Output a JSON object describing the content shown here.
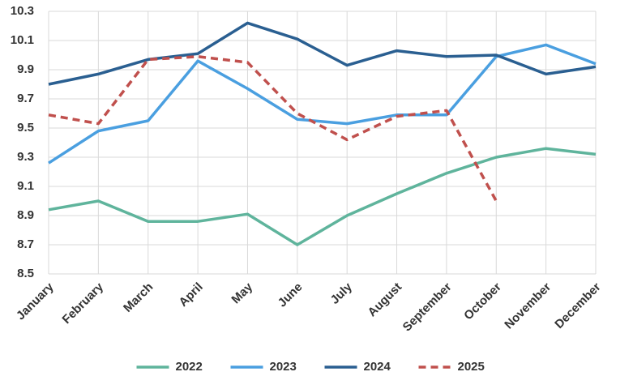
{
  "chart_data": {
    "type": "line",
    "categories": [
      "January",
      "February",
      "March",
      "April",
      "May",
      "June",
      "July",
      "August",
      "September",
      "October",
      "November",
      "December"
    ],
    "series": [
      {
        "name": "2022",
        "color": "#5fb49c",
        "dash": false,
        "values": [
          8.94,
          9.0,
          8.86,
          8.86,
          8.91,
          8.7,
          8.9,
          9.05,
          9.19,
          9.3,
          9.36,
          9.32
        ]
      },
      {
        "name": "2023",
        "color": "#4a9fe0",
        "dash": false,
        "values": [
          9.26,
          9.48,
          9.55,
          9.96,
          9.77,
          9.56,
          9.53,
          9.59,
          9.59,
          9.99,
          10.07,
          9.94
        ]
      },
      {
        "name": "2024",
        "color": "#2a5f91",
        "dash": false,
        "values": [
          9.8,
          9.87,
          9.97,
          10.01,
          10.22,
          10.11,
          9.93,
          10.03,
          9.99,
          10.0,
          9.87,
          9.92
        ]
      },
      {
        "name": "2025",
        "color": "#c0504d",
        "dash": true,
        "values": [
          9.59,
          9.53,
          9.97,
          9.99,
          9.95,
          9.6,
          9.42,
          9.58,
          9.62,
          9.0,
          null,
          null
        ]
      }
    ],
    "ylim": [
      8.5,
      10.3
    ],
    "yticks": [
      8.5,
      8.7,
      8.9,
      9.1,
      9.3,
      9.5,
      9.7,
      9.9,
      10.1,
      10.3
    ],
    "grid": true,
    "legend": "bottom"
  }
}
